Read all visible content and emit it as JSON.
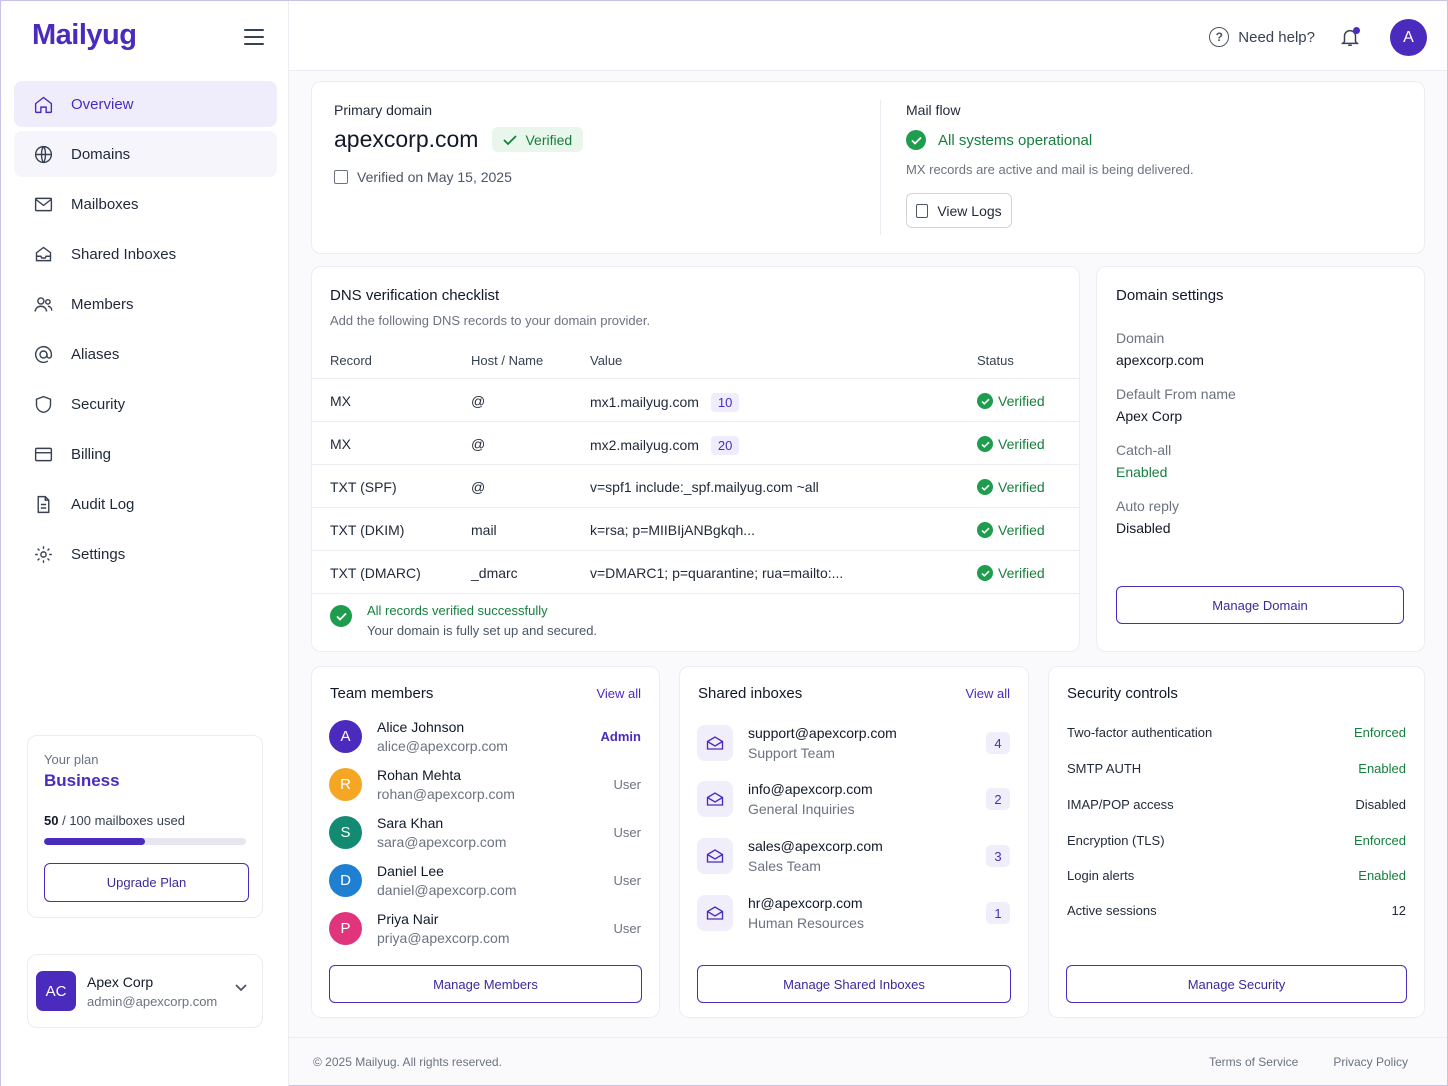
{
  "brand": {
    "name": "Mailyug"
  },
  "sidebar": {
    "items": [
      {
        "label": "Overview",
        "icon": "home-icon"
      },
      {
        "label": "Domains",
        "icon": "globe-icon"
      },
      {
        "label": "Mailboxes",
        "icon": "mail-icon"
      },
      {
        "label": "Shared Inboxes",
        "icon": "inbox-icon"
      },
      {
        "label": "Members",
        "icon": "users-icon"
      },
      {
        "label": "Aliases",
        "icon": "at-icon"
      },
      {
        "label": "Security",
        "icon": "shield-icon"
      },
      {
        "label": "Billing",
        "icon": "credit-card-icon"
      },
      {
        "label": "Audit Log",
        "icon": "document-icon"
      },
      {
        "label": "Settings",
        "icon": "gear-icon"
      }
    ],
    "plan": {
      "label": "Your plan",
      "name": "Business",
      "used": "50",
      "total": "/ 100 mailboxes used",
      "fraction": 0.5,
      "button": "Upgrade Plan"
    },
    "account": {
      "initials": "AC",
      "name": "Apex Corp",
      "email": "admin@apexcorp.com"
    }
  },
  "topbar": {
    "help": "Need help?",
    "avatar": "A"
  },
  "primary": {
    "label": "Primary domain",
    "domain": "apexcorp.com",
    "badge": "Verified",
    "verified_on": "Verified on May 15, 2025",
    "mailflow_label": "Mail flow",
    "mailflow_status": "All systems operational",
    "mailflow_desc": "MX records are active and mail is being delivered.",
    "view_logs": "View Logs"
  },
  "dns": {
    "title": "DNS verification checklist",
    "subtitle": "Add the following DNS records to your domain provider.",
    "headers": {
      "record": "Record",
      "host": "Host / Name",
      "value": "Value",
      "status": "Status"
    },
    "rows": [
      {
        "record": "MX",
        "host": "@",
        "value": "mx1.mailyug.com",
        "priority": "10",
        "status": "Verified"
      },
      {
        "record": "MX",
        "host": "@",
        "value": "mx2.mailyug.com",
        "priority": "20",
        "status": "Verified"
      },
      {
        "record": "TXT (SPF)",
        "host": "@",
        "value": "v=spf1 include:_spf.mailyug.com ~all",
        "status": "Verified"
      },
      {
        "record": "TXT (DKIM)",
        "host": "mail",
        "value": "k=rsa; p=MIIBIjANBgkqh...",
        "status": "Verified"
      },
      {
        "record": "TXT (DMARC)",
        "host": "_dmarc",
        "value": "v=DMARC1; p=quarantine; rua=mailto:...",
        "status": "Verified"
      }
    ],
    "footer_title": "All records verified successfully",
    "footer_desc": "Your domain is fully set up and secured."
  },
  "domain_settings": {
    "title": "Domain settings",
    "fields": [
      {
        "label": "Domain",
        "value": "apexcorp.com"
      },
      {
        "label": "Default From name",
        "value": "Apex Corp"
      },
      {
        "label": "Catch-all",
        "value": "Enabled"
      },
      {
        "label": "Auto reply",
        "value": "Disabled"
      }
    ],
    "button": "Manage Domain"
  },
  "team": {
    "title": "Team members",
    "view_all": "View all",
    "members": [
      {
        "initial": "A",
        "name": "Alice Johnson",
        "email": "alice@apexcorp.com",
        "role": "Admin",
        "color": "#4b2bbd"
      },
      {
        "initial": "R",
        "name": "Rohan Mehta",
        "email": "rohan@apexcorp.com",
        "role": "User",
        "color": "#f5a623"
      },
      {
        "initial": "S",
        "name": "Sara Khan",
        "email": "sara@apexcorp.com",
        "role": "User",
        "color": "#138a72"
      },
      {
        "initial": "D",
        "name": "Daniel Lee",
        "email": "daniel@apexcorp.com",
        "role": "User",
        "color": "#1f7fd0"
      },
      {
        "initial": "P",
        "name": "Priya Nair",
        "email": "priya@apexcorp.com",
        "role": "User",
        "color": "#e0357d"
      }
    ],
    "button": "Manage Members"
  },
  "shared": {
    "title": "Shared inboxes",
    "view_all": "View all",
    "inboxes": [
      {
        "address": "support@apexcorp.com",
        "name": "Support Team",
        "count": "4"
      },
      {
        "address": "info@apexcorp.com",
        "name": "General Inquiries",
        "count": "2"
      },
      {
        "address": "sales@apexcorp.com",
        "name": "Sales Team",
        "count": "3"
      },
      {
        "address": "hr@apexcorp.com",
        "name": "Human Resources",
        "count": "1"
      }
    ],
    "button": "Manage Shared Inboxes"
  },
  "security": {
    "title": "Security controls",
    "rows": [
      {
        "label": "Two-factor authentication",
        "value": "Enforced",
        "green": true
      },
      {
        "label": "SMTP AUTH",
        "value": "Enabled",
        "green": true
      },
      {
        "label": "IMAP/POP access",
        "value": "Disabled",
        "green": false
      },
      {
        "label": "Encryption (TLS)",
        "value": "Enforced",
        "green": true
      },
      {
        "label": "Login alerts",
        "value": "Enabled",
        "green": true
      },
      {
        "label": "Active sessions",
        "value": "12",
        "green": false
      }
    ],
    "button": "Manage Security"
  },
  "footer": {
    "copy": "© 2025 Mailyug. All rights reserved.",
    "terms": "Terms of Service",
    "privacy": "Privacy Policy"
  },
  "colors": {
    "accent": "#4b2bbd",
    "success": "#15803d"
  }
}
